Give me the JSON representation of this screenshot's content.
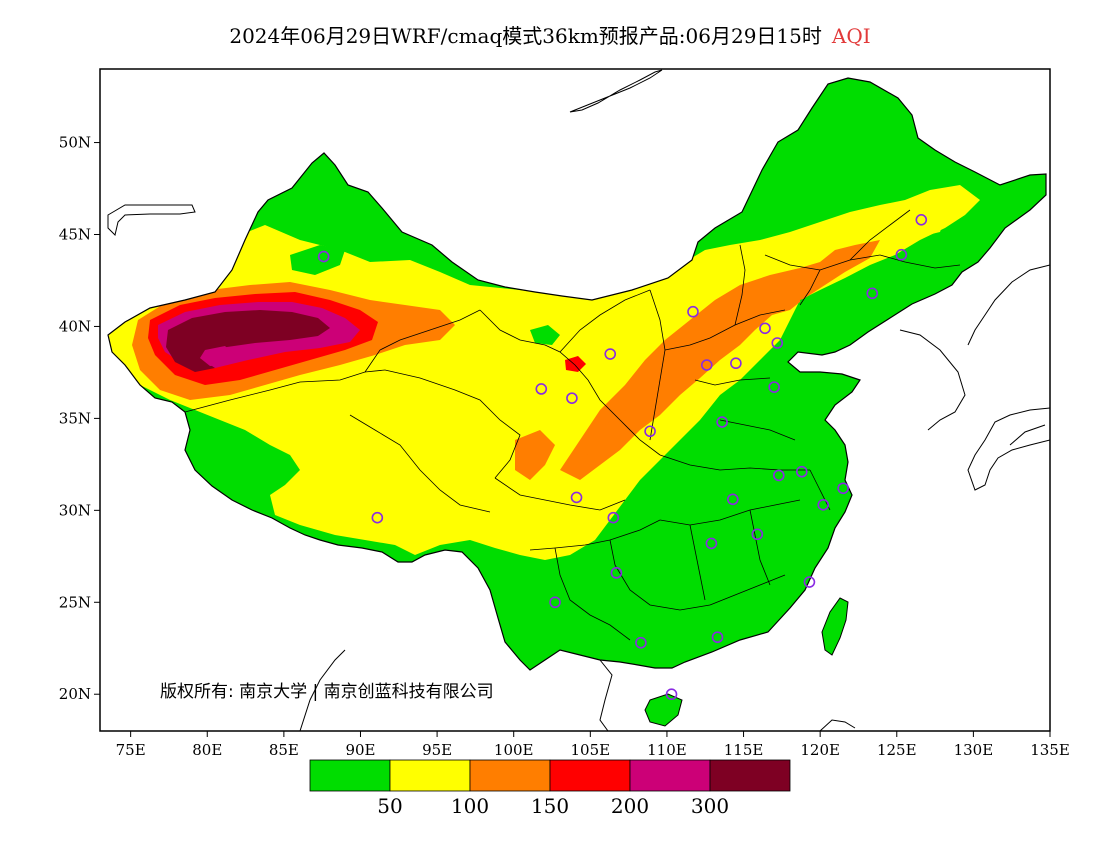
{
  "title": {
    "main": "2024年06月29日WRF/cmaq模式36km预报产品:06月29日15时",
    "product": "AQI"
  },
  "map": {
    "lon_range": [
      73,
      135
    ],
    "lat_range": [
      18,
      54
    ],
    "x_ticks": [
      "75E",
      "80E",
      "85E",
      "90E",
      "95E",
      "100E",
      "105E",
      "110E",
      "115E",
      "120E",
      "125E",
      "130E",
      "135E"
    ],
    "x_tick_values": [
      75,
      80,
      85,
      90,
      95,
      100,
      105,
      110,
      115,
      120,
      125,
      130,
      135
    ],
    "y_ticks": [
      "20N",
      "25N",
      "30N",
      "35N",
      "40N",
      "45N",
      "50N"
    ],
    "y_tick_values": [
      20,
      25,
      30,
      35,
      40,
      45,
      50
    ],
    "copyright": "版权所有: 南京大学 | 南京创蓝科技有限公司"
  },
  "legend": {
    "colors": [
      "#00dd00",
      "#ffff00",
      "#ff7e00",
      "#ff0000",
      "#cc0077",
      "#7e0023"
    ],
    "labels": [
      "50",
      "100",
      "150",
      "200",
      "300"
    ]
  },
  "stations": [
    {
      "lon": 87.6,
      "lat": 43.8
    },
    {
      "lon": 91.1,
      "lat": 29.6
    },
    {
      "lon": 101.8,
      "lat": 36.6
    },
    {
      "lon": 103.8,
      "lat": 36.1
    },
    {
      "lon": 106.3,
      "lat": 38.5
    },
    {
      "lon": 104.1,
      "lat": 30.7
    },
    {
      "lon": 106.5,
      "lat": 29.6
    },
    {
      "lon": 106.7,
      "lat": 26.6
    },
    {
      "lon": 102.7,
      "lat": 25.0
    },
    {
      "lon": 108.3,
      "lat": 22.8
    },
    {
      "lon": 110.3,
      "lat": 20.0
    },
    {
      "lon": 108.9,
      "lat": 34.3
    },
    {
      "lon": 111.7,
      "lat": 40.8
    },
    {
      "lon": 112.6,
      "lat": 37.9
    },
    {
      "lon": 114.5,
      "lat": 38.0
    },
    {
      "lon": 116.4,
      "lat": 39.9
    },
    {
      "lon": 117.2,
      "lat": 39.1
    },
    {
      "lon": 117.0,
      "lat": 36.7
    },
    {
      "lon": 113.6,
      "lat": 34.8
    },
    {
      "lon": 114.3,
      "lat": 30.6
    },
    {
      "lon": 112.9,
      "lat": 28.2
    },
    {
      "lon": 115.9,
      "lat": 28.7
    },
    {
      "lon": 117.3,
      "lat": 31.9
    },
    {
      "lon": 118.8,
      "lat": 32.1
    },
    {
      "lon": 120.2,
      "lat": 30.3
    },
    {
      "lon": 121.5,
      "lat": 31.2
    },
    {
      "lon": 119.3,
      "lat": 26.1
    },
    {
      "lon": 113.3,
      "lat": 23.1
    },
    {
      "lon": 123.4,
      "lat": 41.8
    },
    {
      "lon": 125.3,
      "lat": 43.9
    },
    {
      "lon": 126.6,
      "lat": 45.8
    }
  ]
}
